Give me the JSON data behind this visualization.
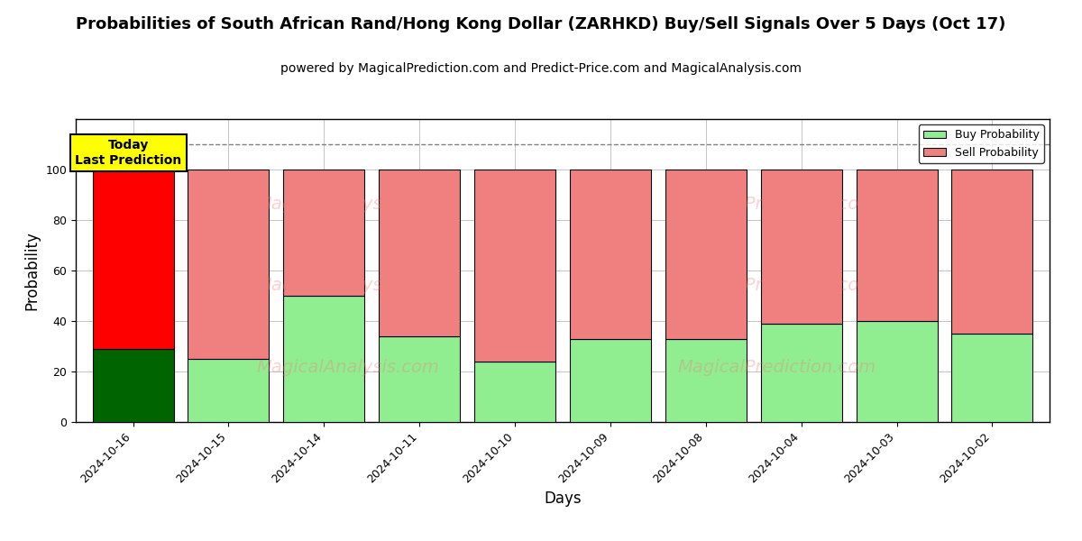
{
  "title": "Probabilities of South African Rand/Hong Kong Dollar (ZARHKD) Buy/Sell Signals Over 5 Days (Oct 17)",
  "subtitle": "powered by MagicalPrediction.com and Predict-Price.com and MagicalAnalysis.com",
  "xlabel": "Days",
  "ylabel": "Probability",
  "categories": [
    "2024-10-16",
    "2024-10-15",
    "2024-10-14",
    "2024-10-11",
    "2024-10-10",
    "2024-10-09",
    "2024-10-08",
    "2024-10-04",
    "2024-10-03",
    "2024-10-02"
  ],
  "buy_values": [
    29,
    25,
    50,
    34,
    24,
    33,
    33,
    39,
    40,
    35
  ],
  "sell_values": [
    71,
    75,
    50,
    66,
    76,
    67,
    67,
    61,
    60,
    65
  ],
  "buy_colors": [
    "#006400",
    "#90EE90",
    "#90EE90",
    "#90EE90",
    "#90EE90",
    "#90EE90",
    "#90EE90",
    "#90EE90",
    "#90EE90",
    "#90EE90"
  ],
  "sell_colors": [
    "#FF0000",
    "#F08080",
    "#F08080",
    "#F08080",
    "#F08080",
    "#F08080",
    "#F08080",
    "#F08080",
    "#F08080",
    "#F08080"
  ],
  "today_label": "Today\nLast Prediction",
  "today_bg": "#FFFF00",
  "today_border": "#000000",
  "legend_buy_color": "#90EE90",
  "legend_sell_color": "#F08080",
  "ylim": [
    0,
    120
  ],
  "yticks": [
    0,
    20,
    40,
    60,
    80,
    100
  ],
  "dashed_line_y": 110,
  "background_color": "#ffffff",
  "grid_color": "#bbbbbb",
  "title_fontsize": 13,
  "subtitle_fontsize": 10,
  "axis_label_fontsize": 12,
  "tick_fontsize": 9,
  "bar_width": 0.85
}
